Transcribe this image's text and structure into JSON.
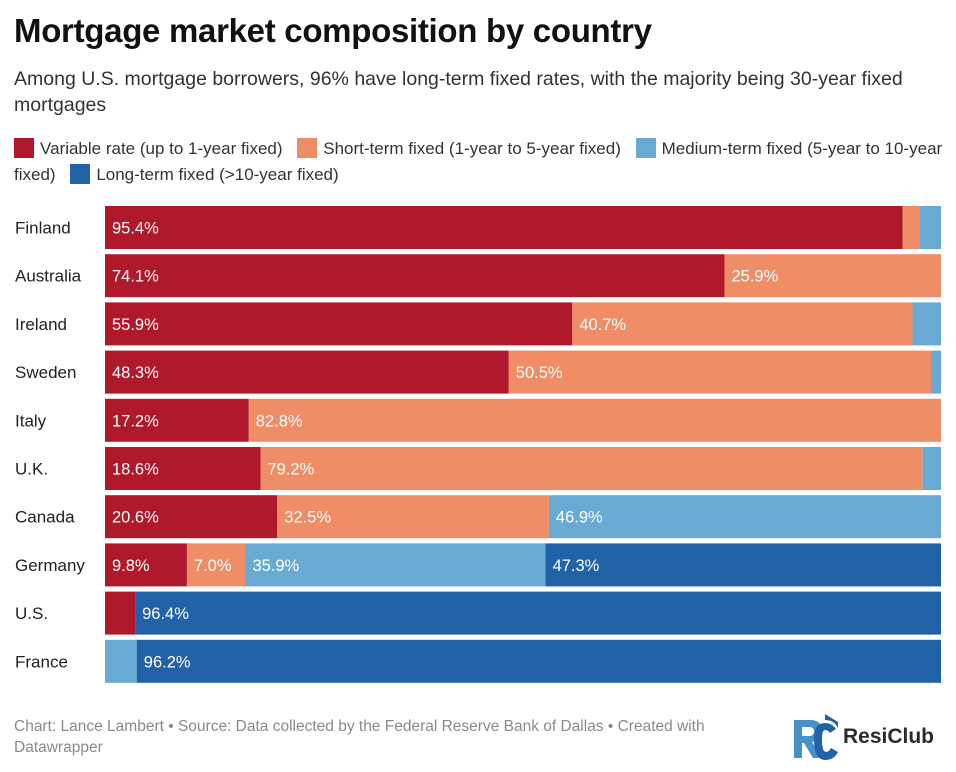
{
  "title": "Mortgage market composition by country",
  "subtitle": "Among U.S. mortgage borrowers, 96% have long-term fixed rates, with the majority being 30-year fixed mortgages",
  "footer": "Chart: Lance Lambert • Source: Data collected by the Federal Reserve Bank of Dallas • Created with Datawrapper",
  "logo": {
    "name": "ResiClub",
    "icon": "rc-logo-icon"
  },
  "colors": {
    "variable": "#b0192b",
    "short": "#ef8d66",
    "medium": "#68aad3",
    "long": "#2262a9"
  },
  "chart_data": {
    "type": "bar",
    "stacked": true,
    "orientation": "horizontal",
    "xlim": [
      0,
      100
    ],
    "legend_position": "top",
    "categories": [
      "Finland",
      "Australia",
      "Ireland",
      "Sweden",
      "Italy",
      "U.K.",
      "Canada",
      "Germany",
      "U.S.",
      "France"
    ],
    "series": [
      {
        "name": "Variable rate (up to 1-year fixed)",
        "key": "variable",
        "values": [
          95.4,
          74.1,
          55.9,
          48.3,
          17.2,
          18.6,
          20.6,
          9.8,
          3.6,
          0
        ],
        "labels": [
          "95.4%",
          "74.1%",
          "55.9%",
          "48.3%",
          "17.2%",
          "18.6%",
          "20.6%",
          "9.8%",
          "",
          ""
        ]
      },
      {
        "name": "Short-term fixed (1-year to 5-year fixed)",
        "key": "short",
        "values": [
          2.0,
          25.9,
          40.7,
          50.5,
          82.8,
          79.2,
          32.5,
          7.0,
          0,
          0
        ],
        "labels": [
          "",
          "25.9%",
          "40.7%",
          "50.5%",
          "82.8%",
          "79.2%",
          "32.5%",
          "7.0%",
          "",
          ""
        ]
      },
      {
        "name": "Medium-term fixed (5-year to 10-year fixed)",
        "key": "medium",
        "values": [
          2.6,
          0,
          3.4,
          1.2,
          0,
          2.2,
          46.9,
          35.9,
          0,
          3.8
        ],
        "labels": [
          "",
          "",
          "",
          "",
          "",
          "",
          "46.9%",
          "35.9%",
          "",
          ""
        ]
      },
      {
        "name": "Long-term fixed (>10-year fixed)",
        "key": "long",
        "values": [
          0,
          0,
          0,
          0,
          0,
          0,
          0,
          47.3,
          96.4,
          96.2
        ],
        "labels": [
          "",
          "",
          "",
          "",
          "",
          "",
          "",
          "47.3%",
          "96.4%",
          "96.2%"
        ]
      }
    ]
  }
}
